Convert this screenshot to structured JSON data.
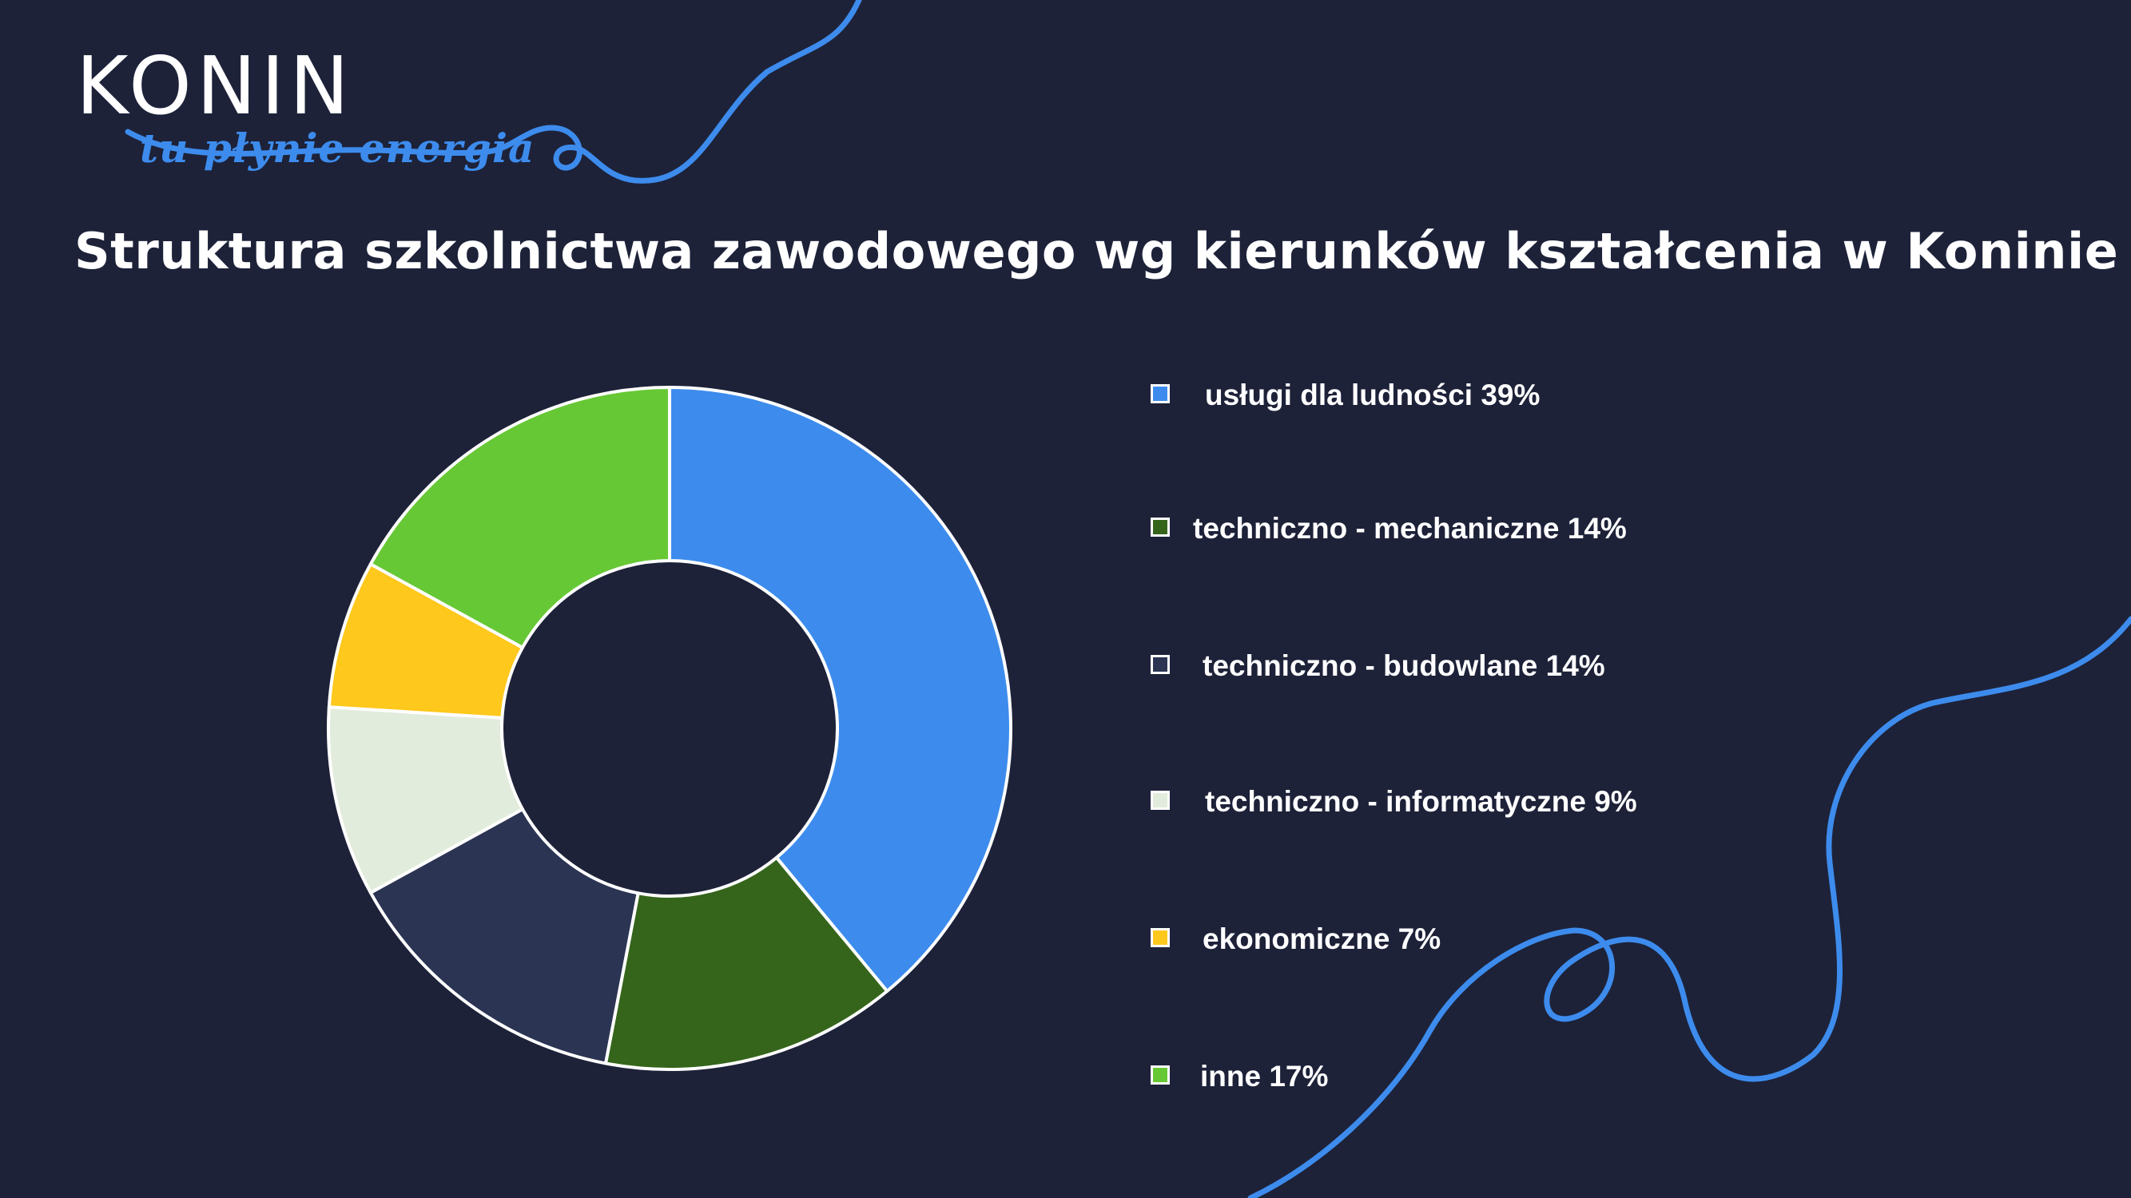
{
  "logo": {
    "wordmark": "KONIN",
    "tagline": "tu płynie energia"
  },
  "colors": {
    "background": "#1d2239",
    "accent": "#3d8ced",
    "text": "#ffffff"
  },
  "chart_data": {
    "type": "pie",
    "variant": "donut",
    "title": "Struktura szkolnictwa zawodowego wg kierunków kształcenia w Koninie",
    "legend_position": "right",
    "unit": "%",
    "slices": [
      {
        "label": "usługi dla ludności 39%",
        "category": "usługi dla ludności",
        "value": 39,
        "color": "#3d8ced"
      },
      {
        "label": "techniczno - mechaniczne 14%",
        "category": "techniczno - mechaniczne",
        "value": 14,
        "color": "#35651b"
      },
      {
        "label": "techniczno - budowlane 14%",
        "category": "techniczno - budowlane",
        "value": 14,
        "color": "#2b3453"
      },
      {
        "label": "techniczno - informatyczne 9%",
        "category": "techniczno - informatyczne",
        "value": 9,
        "color": "#e2ecdc"
      },
      {
        "label": "ekonomiczne 7%",
        "category": "ekonomiczne",
        "value": 7,
        "color": "#fec81c"
      },
      {
        "label": "inne 17%",
        "category": "inne",
        "value": 17,
        "color": "#67c836"
      }
    ]
  }
}
